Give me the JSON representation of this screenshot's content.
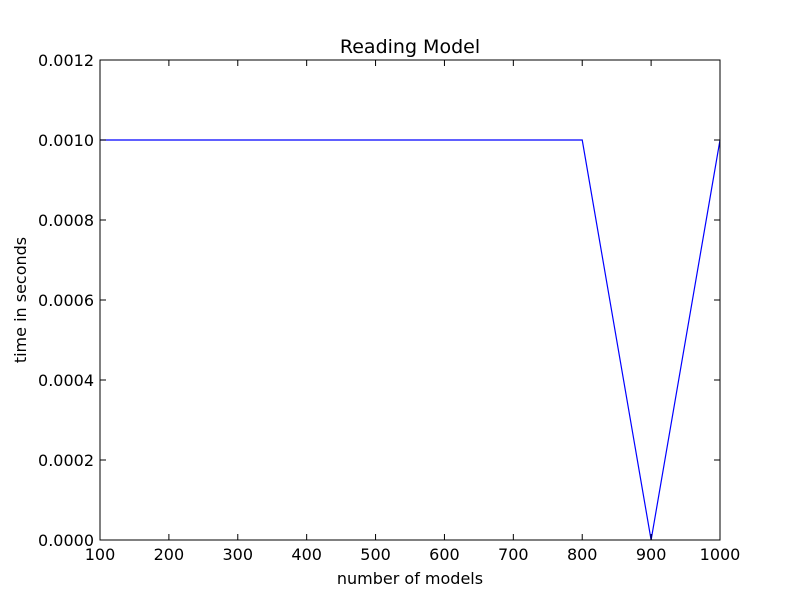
{
  "chart_data": {
    "type": "line",
    "title": "Reading Model",
    "xlabel": "number of models",
    "ylabel": "time in seconds",
    "xlim": [
      100,
      1000
    ],
    "ylim": [
      0,
      0.0012
    ],
    "x_ticks": [
      100,
      200,
      300,
      400,
      500,
      600,
      700,
      800,
      900,
      1000
    ],
    "y_ticks": [
      0,
      0.0002,
      0.0004,
      0.0006,
      0.0008,
      0.001,
      0.0012
    ],
    "x_tick_labels": [
      "100",
      "200",
      "300",
      "400",
      "500",
      "600",
      "700",
      "800",
      "900",
      "1000"
    ],
    "y_tick_labels": [
      "0.0000",
      "0.0002",
      "0.0004",
      "0.0006",
      "0.0008",
      "0.0010",
      "0.0012"
    ],
    "grid": false,
    "series": [
      {
        "color": "#0000ff",
        "x": [
          100,
          200,
          300,
          400,
          500,
          600,
          700,
          800,
          900,
          1000
        ],
        "y": [
          0.001,
          0.001,
          0.001,
          0.001,
          0.001,
          0.001,
          0.001,
          0.001,
          0.0,
          0.001
        ]
      }
    ]
  }
}
